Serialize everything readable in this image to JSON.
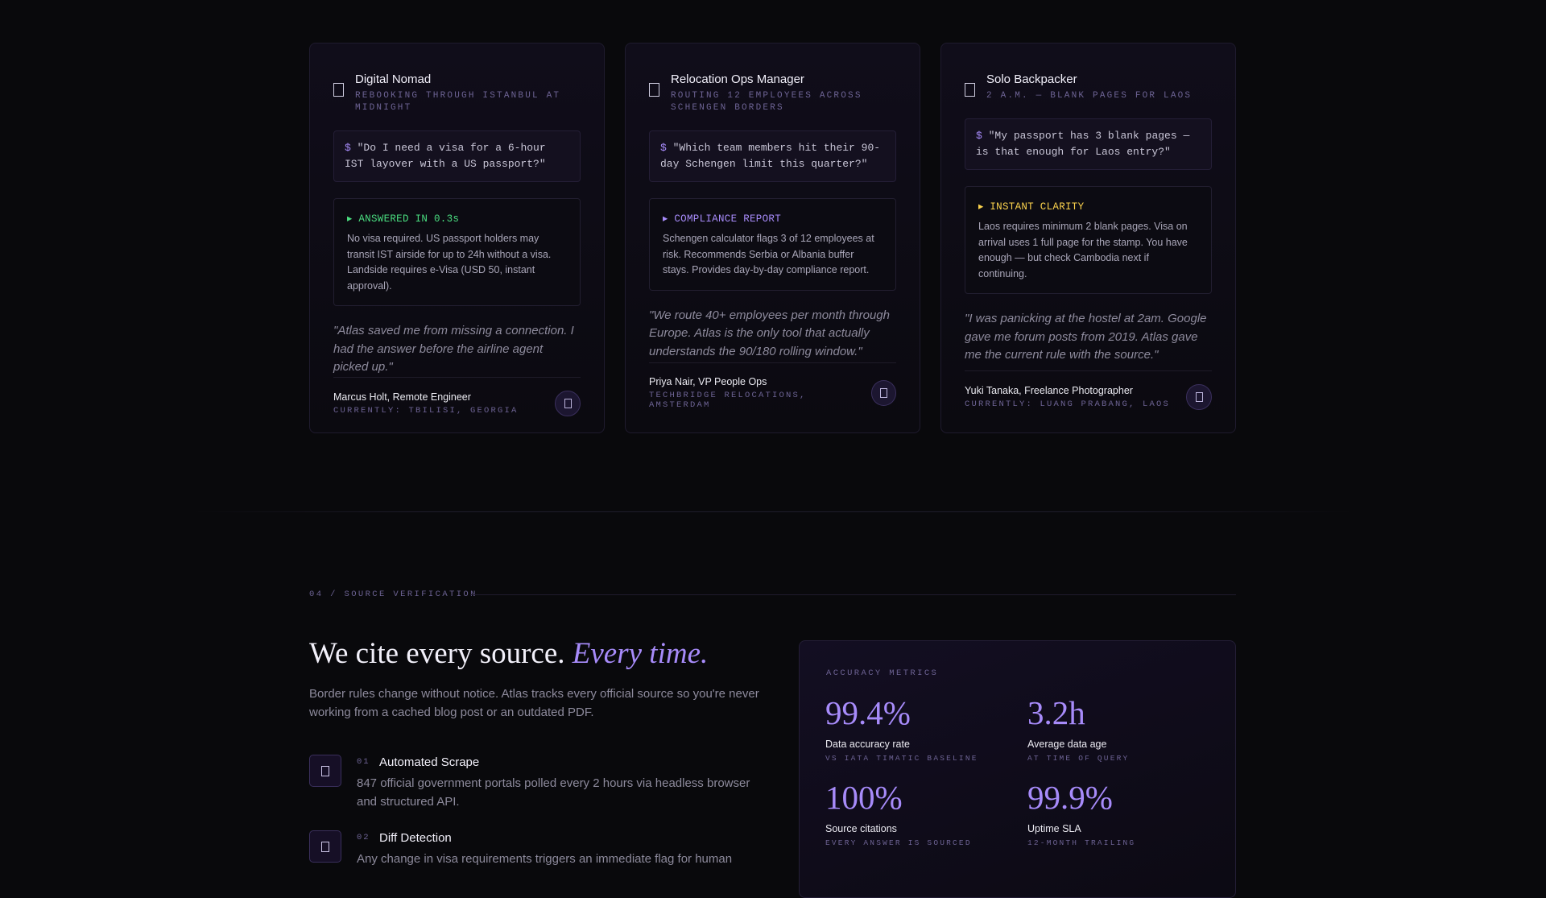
{
  "testimonials": [
    {
      "role": "Digital Nomad",
      "context": "REBOOKING THROUGH ISTANBUL AT MIDNIGHT",
      "prompt": "$",
      "query": "\"Do I need a visa for a 6-hour IST layover with a US passport?\"",
      "answer_label": "▸ ANSWERED IN 0.3s",
      "answer": "No visa required. US passport holders may transit IST airside for up to 24h without a visa. Landside requires e-Visa (USD 50, instant approval).",
      "quote": "\"Atlas saved me from missing a connection. I had the answer before the airline agent picked up.\"",
      "name": "Marcus Holt, Remote Engineer",
      "location": "CURRENTLY: TBILISI, GEORGIA",
      "accent": "#4ade80"
    },
    {
      "role": "Relocation Ops Manager",
      "context": "ROUTING 12 EMPLOYEES ACROSS SCHENGEN BORDERS",
      "prompt": "$",
      "query": "\"Which team members hit their 90-day Schengen limit this quarter?\"",
      "answer_label": "▸ COMPLIANCE REPORT",
      "answer": "Schengen calculator flags 3 of 12 employees at risk. Recommends Serbia or Albania buffer stays. Provides day-by-day compliance report.",
      "quote": "\"We route 40+ employees per month through Europe. Atlas is the only tool that actually understands the 90/180 rolling window.\"",
      "name": "Priya Nair, VP People Ops",
      "location": "TECHBRIDGE RELOCATIONS, AMSTERDAM",
      "accent": "#a78bfa"
    },
    {
      "role": "Solo Backpacker",
      "context": "2 A.M. — BLANK PAGES FOR LAOS",
      "prompt": "$",
      "query": "\"My passport has 3 blank pages — is that enough for Laos entry?\"",
      "answer_label": "▸ INSTANT CLARITY",
      "answer": "Laos requires minimum 2 blank pages. Visa on arrival uses 1 full page for the stamp. You have enough — but check Cambodia next if continuing.",
      "quote": "\"I was panicking at the hostel at 2am. Google gave me forum posts from 2019. Atlas gave me the current rule with the source.\"",
      "name": "Yuki Tanaka, Freelance Photographer",
      "location": "CURRENTLY: LUANG PRABANG, LAOS",
      "accent": "#fcd34d"
    }
  ],
  "source_section": {
    "eyebrow": "04 / SOURCE VERIFICATION",
    "heading": "We cite every source.",
    "heading_emphasis": "Every time.",
    "intro": "Border rules change without notice. Atlas tracks every official source so you're never working from a cached blog post or an outdated PDF.",
    "steps": [
      {
        "number": "01",
        "title": "Automated Scrape",
        "text": "847 official government portals polled every 2 hours via headless browser and structured API."
      },
      {
        "number": "02",
        "title": "Diff Detection",
        "text": "Any change in visa requirements triggers an immediate flag for human"
      }
    ],
    "metrics_title": "ACCURACY METRICS",
    "metrics": [
      {
        "value": "99.4%",
        "label": "Data accuracy rate",
        "note": "VS IATA TIMATIC BASELINE"
      },
      {
        "value": "3.2h",
        "label": "Average data age",
        "note": "AT TIME OF QUERY"
      },
      {
        "value": "100%",
        "label": "Source citations",
        "note": "EVERY ANSWER IS SOURCED"
      },
      {
        "value": "99.9%",
        "label": "Uptime SLA",
        "note": "12-MONTH TRAILING"
      }
    ]
  }
}
